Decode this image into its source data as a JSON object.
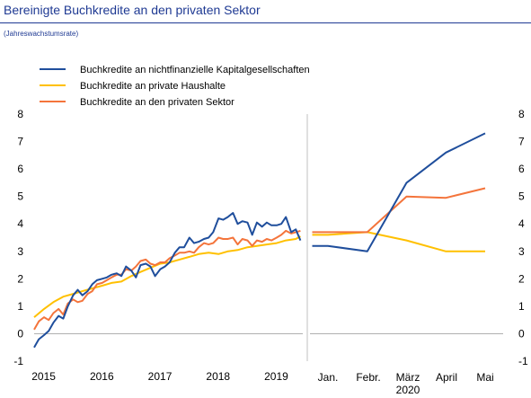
{
  "header": {
    "title": "Bereinigte Buchkredite an den privaten Sektor",
    "subtitle": "(Jahreswachstumsrate)"
  },
  "colors": {
    "nfc": "#1f4e9c",
    "households": "#ffc000",
    "private_sector": "#f4743b",
    "title": "#1f3a93",
    "zero_line": "#b0b0b0"
  },
  "chart_data": [
    {
      "type": "line",
      "ylim": [
        -1,
        8
      ],
      "y_ticks": [
        -1,
        0,
        1,
        2,
        3,
        4,
        5,
        6,
        7,
        8
      ],
      "x_ticks": [
        "2015",
        "2016",
        "2017",
        "2018",
        "2019"
      ],
      "x_tick_values": [
        2015.0,
        2016.0,
        2017.0,
        2018.0,
        2019.0
      ],
      "xlim": [
        2014.96,
        2019.58
      ],
      "legend_position": "top-left",
      "series": [
        {
          "name": "Buchkredite an nichtfinanzielle Kapitalgesellschaften",
          "color_key": "nfc",
          "x": [
            2014.96,
            2015.04,
            2015.13,
            2015.21,
            2015.29,
            2015.38,
            2015.46,
            2015.54,
            2015.63,
            2015.71,
            2015.79,
            2015.88,
            2015.96,
            2016.04,
            2016.13,
            2016.21,
            2016.29,
            2016.38,
            2016.46,
            2016.54,
            2016.63,
            2016.71,
            2016.79,
            2016.88,
            2016.96,
            2017.04,
            2017.13,
            2017.21,
            2017.29,
            2017.38,
            2017.46,
            2017.54,
            2017.63,
            2017.71,
            2017.79,
            2017.88,
            2017.96,
            2018.04,
            2018.13,
            2018.21,
            2018.29,
            2018.38,
            2018.46,
            2018.54,
            2018.63,
            2018.71,
            2018.79,
            2018.88,
            2018.96,
            2019.04,
            2019.13,
            2019.21,
            2019.29,
            2019.38,
            2019.46,
            2019.54
          ],
          "values": [
            -0.5,
            -0.2,
            -0.05,
            0.1,
            0.4,
            0.65,
            0.55,
            1.0,
            1.4,
            1.6,
            1.4,
            1.55,
            1.8,
            1.95,
            2.0,
            2.05,
            2.15,
            2.2,
            2.1,
            2.45,
            2.3,
            2.05,
            2.5,
            2.55,
            2.45,
            2.1,
            2.35,
            2.45,
            2.6,
            2.95,
            3.15,
            3.15,
            3.5,
            3.3,
            3.35,
            3.45,
            3.5,
            3.7,
            4.2,
            4.15,
            4.25,
            4.4,
            4.0,
            4.1,
            4.05,
            3.6,
            4.05,
            3.9,
            4.05,
            3.95,
            3.95,
            4.0,
            4.25,
            3.7,
            3.8,
            3.4
          ]
        },
        {
          "name": "Buchkredite an private Haushalte",
          "color_key": "households",
          "x": [
            2014.96,
            2015.13,
            2015.29,
            2015.46,
            2015.63,
            2015.79,
            2015.96,
            2016.13,
            2016.29,
            2016.46,
            2016.63,
            2016.79,
            2016.96,
            2017.13,
            2017.29,
            2017.46,
            2017.63,
            2017.79,
            2017.96,
            2018.13,
            2018.29,
            2018.46,
            2018.63,
            2018.79,
            2018.96,
            2019.13,
            2019.29,
            2019.46,
            2019.54
          ],
          "values": [
            0.6,
            0.9,
            1.15,
            1.35,
            1.45,
            1.55,
            1.65,
            1.75,
            1.85,
            1.9,
            2.1,
            2.25,
            2.4,
            2.55,
            2.6,
            2.7,
            2.8,
            2.9,
            2.95,
            2.9,
            3.0,
            3.05,
            3.15,
            3.2,
            3.25,
            3.3,
            3.4,
            3.45,
            3.55
          ]
        },
        {
          "name": "Buchkredite an den privaten Sektor",
          "color_key": "private_sector",
          "x": [
            2014.96,
            2015.04,
            2015.13,
            2015.21,
            2015.29,
            2015.38,
            2015.46,
            2015.54,
            2015.63,
            2015.71,
            2015.79,
            2015.88,
            2015.96,
            2016.04,
            2016.13,
            2016.21,
            2016.29,
            2016.38,
            2016.46,
            2016.54,
            2016.63,
            2016.71,
            2016.79,
            2016.88,
            2016.96,
            2017.04,
            2017.13,
            2017.21,
            2017.29,
            2017.38,
            2017.46,
            2017.54,
            2017.63,
            2017.71,
            2017.79,
            2017.88,
            2017.96,
            2018.04,
            2018.13,
            2018.21,
            2018.29,
            2018.38,
            2018.46,
            2018.54,
            2018.63,
            2018.71,
            2018.79,
            2018.88,
            2018.96,
            2019.04,
            2019.13,
            2019.21,
            2019.29,
            2019.38,
            2019.46,
            2019.54
          ],
          "values": [
            0.15,
            0.45,
            0.6,
            0.5,
            0.75,
            0.9,
            0.7,
            1.1,
            1.25,
            1.15,
            1.2,
            1.45,
            1.55,
            1.8,
            1.85,
            1.95,
            2.05,
            2.15,
            2.15,
            2.35,
            2.3,
            2.45,
            2.65,
            2.7,
            2.55,
            2.5,
            2.6,
            2.6,
            2.75,
            2.85,
            2.95,
            2.95,
            3.0,
            2.95,
            3.15,
            3.3,
            3.25,
            3.3,
            3.5,
            3.45,
            3.45,
            3.5,
            3.25,
            3.45,
            3.4,
            3.2,
            3.4,
            3.35,
            3.45,
            3.4,
            3.5,
            3.6,
            3.75,
            3.65,
            3.7,
            3.75
          ]
        }
      ]
    },
    {
      "type": "line",
      "ylim": [
        -1,
        8
      ],
      "y_ticks": [
        -1,
        0,
        1,
        2,
        3,
        4,
        5,
        6,
        7,
        8
      ],
      "categories": [
        "Jan.",
        "Febr.",
        "März 2020",
        "April",
        "Mai"
      ],
      "category_labels": [
        [
          "Jan."
        ],
        [
          "Febr."
        ],
        [
          "März",
          "2020"
        ],
        [
          "April"
        ],
        [
          "Mai"
        ]
      ],
      "series": [
        {
          "name": "Buchkredite an nichtfinanzielle Kapitalgesellschaften",
          "color_key": "nfc",
          "x": [
            0,
            1,
            2,
            3,
            4
          ],
          "values": [
            3.2,
            3.0,
            5.5,
            6.6,
            7.3
          ],
          "lead_in": {
            "x": -0.4,
            "value": 3.2
          }
        },
        {
          "name": "Buchkredite an private Haushalte",
          "color_key": "households",
          "x": [
            0,
            1,
            2,
            3,
            4
          ],
          "values": [
            3.6,
            3.7,
            3.4,
            3.0,
            3.0
          ],
          "lead_in": {
            "x": -0.4,
            "value": 3.6
          }
        },
        {
          "name": "Buchkredite an den privaten Sektor",
          "color_key": "private_sector",
          "x": [
            0,
            1,
            2,
            3,
            4
          ],
          "values": [
            3.7,
            3.7,
            5.0,
            4.95,
            5.3
          ],
          "lead_in": {
            "x": -0.4,
            "value": 3.7
          }
        }
      ]
    }
  ]
}
